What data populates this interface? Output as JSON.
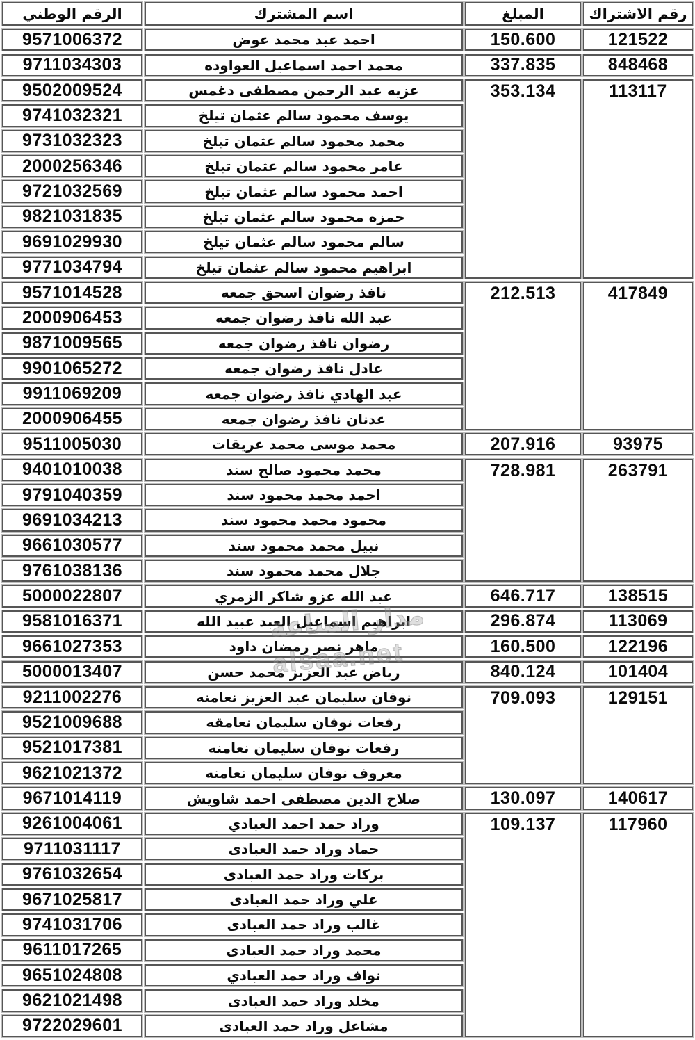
{
  "table": {
    "headers": {
      "subscription_no": "رقم الاشتراك",
      "amount": "المبلغ",
      "subscriber_name": "اسم المشترك",
      "national_no": "الرقم الوطني"
    },
    "groups": [
      {
        "subscription_no": "121522",
        "amount": "150.600",
        "members": [
          {
            "name": "احمد عبد محمد عوض",
            "national_no": "9571006372"
          }
        ]
      },
      {
        "subscription_no": "848468",
        "amount": "337.835",
        "members": [
          {
            "name": "محمد احمد اسماعيل العواوده",
            "national_no": "9711034303"
          }
        ]
      },
      {
        "subscription_no": "113117",
        "amount": "353.134",
        "members": [
          {
            "name": "عزيه عبد الرحمن مصطفى دغمس",
            "national_no": "9502009524"
          },
          {
            "name": "يوسف محمود سالم عثمان تيلخ",
            "national_no": "9741032321"
          },
          {
            "name": "محمد محمود سالم عثمان تيلخ",
            "national_no": "9731032323"
          },
          {
            "name": "عامر محمود سالم عثمان تيلخ",
            "national_no": "2000256346"
          },
          {
            "name": "احمد محمود سالم عثمان تيلخ",
            "national_no": "9721032569"
          },
          {
            "name": "حمزه محمود سالم عثمان تيلخ",
            "national_no": "9821031835"
          },
          {
            "name": "سالم محمود سالم عثمان تيلخ",
            "national_no": "9691029930"
          },
          {
            "name": "ابراهيم محمود سالم عثمان تيلخ",
            "national_no": "9771034794"
          }
        ]
      },
      {
        "subscription_no": "417849",
        "amount": "212.513",
        "members": [
          {
            "name": "نافذ رضوان اسحق جمعه",
            "national_no": "9571014528"
          },
          {
            "name": "عبد الله نافذ رضوان جمعه",
            "national_no": "2000906453"
          },
          {
            "name": "رضوان نافذ رضوان جمعه",
            "national_no": "9871009565"
          },
          {
            "name": "عادل نافذ رضوان جمعه",
            "national_no": "9901065272"
          },
          {
            "name": "عبد الهادي نافذ رضوان جمعه",
            "national_no": "9911069209"
          },
          {
            "name": "عدنان نافذ رضوان جمعه",
            "national_no": "2000906455"
          }
        ]
      },
      {
        "subscription_no": "93975",
        "amount": "207.916",
        "members": [
          {
            "name": "محمد موسى محمد عريقات",
            "national_no": "9511005030"
          }
        ]
      },
      {
        "subscription_no": "263791",
        "amount": "728.981",
        "members": [
          {
            "name": "محمد محمود صالح سند",
            "national_no": "9401010038"
          },
          {
            "name": "احمد محمد محمود سند",
            "national_no": "9791040359"
          },
          {
            "name": "محمود محمد محمود سند",
            "national_no": "9691034213"
          },
          {
            "name": "نبيل محمد محمود سند",
            "national_no": "9661030577"
          },
          {
            "name": "جلال محمد محمود سند",
            "national_no": "9761038136"
          }
        ]
      },
      {
        "subscription_no": "138515",
        "amount": "646.717",
        "members": [
          {
            "name": "عبد الله عزو شاكر الزمري",
            "national_no": "5000022807"
          }
        ]
      },
      {
        "subscription_no": "113069",
        "amount": "296.874",
        "members": [
          {
            "name": "ابراهيم اسماعيل العبد عبيد الله",
            "national_no": "9581016371"
          }
        ]
      },
      {
        "subscription_no": "122196",
        "amount": "160.500",
        "members": [
          {
            "name": "ماهر نصر رمضان داود",
            "national_no": "9661027353"
          }
        ]
      },
      {
        "subscription_no": "101404",
        "amount": "840.124",
        "members": [
          {
            "name": "رياض عبد العزيز محمد حسن",
            "national_no": "5000013407"
          }
        ]
      },
      {
        "subscription_no": "129151",
        "amount": "709.093",
        "members": [
          {
            "name": "نوفان سليمان عبد العزيز نعامنه",
            "national_no": "9211002276"
          },
          {
            "name": "رفعات نوفان سليمان نعامقه",
            "national_no": "9521009688"
          },
          {
            "name": "رفعات نوفان سليمان نعامنه",
            "national_no": "9521017381"
          },
          {
            "name": "معروف نوفان سليمان نعامنه",
            "national_no": "9621021372"
          }
        ]
      },
      {
        "subscription_no": "140617",
        "amount": "130.097",
        "members": [
          {
            "name": "صلاح الدين مصطفى احمد شاويش",
            "national_no": "9671014119"
          }
        ]
      },
      {
        "subscription_no": "117960",
        "amount": "109.137",
        "members": [
          {
            "name": "وراد حمد احمد العبادي",
            "national_no": "9261004061"
          },
          {
            "name": "حماد وراد حمد العبادى",
            "national_no": "9711031117"
          },
          {
            "name": "بركات وراد حمد العبادى",
            "national_no": "9761032654"
          },
          {
            "name": "علي وراد حمد العبادى",
            "national_no": "9671025817"
          },
          {
            "name": "غالب وراد حمد العبادى",
            "national_no": "9741031706"
          },
          {
            "name": "محمد وراد حمد العبادى",
            "national_no": "9611017265"
          },
          {
            "name": "نواف وراد حمد العبادي",
            "national_no": "9651024808"
          },
          {
            "name": "مخلد وراد حمد العبادى",
            "national_no": "9621021498"
          },
          {
            "name": "مشاعل وراد حمد العبادى",
            "national_no": "9722029601"
          }
        ]
      }
    ]
  },
  "watermark": {
    "line1": "مدار الساعة",
    "line2": "alsaa.net"
  },
  "colors": {
    "border": "#565656",
    "text": "#0b0b0b",
    "background": "#ffffff",
    "watermark": "#969696"
  }
}
